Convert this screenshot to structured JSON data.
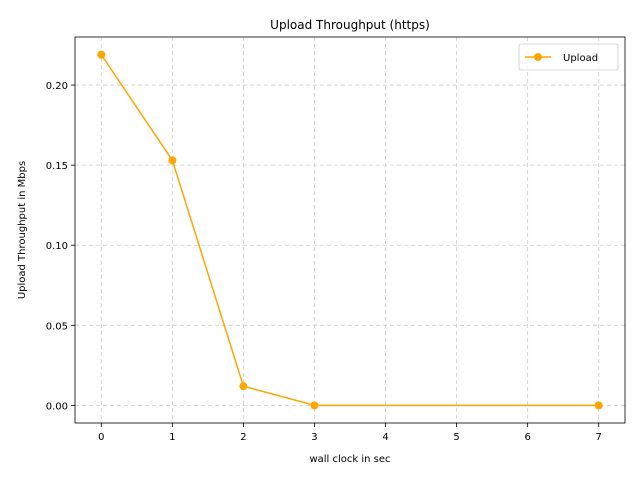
{
  "chart_data": {
    "type": "line",
    "title": "Upload Throughput (https)",
    "xlabel": "wall clock in sec",
    "ylabel": "Upload Throughput in Mbps",
    "x": [
      0,
      1,
      2,
      3,
      7
    ],
    "series": [
      {
        "name": "Upload",
        "color": "#ffa500",
        "marker": "circle",
        "values": [
          0.219,
          0.153,
          0.012,
          0.0,
          0.0
        ]
      }
    ],
    "xticks": [
      0,
      1,
      2,
      3,
      4,
      5,
      6,
      7
    ],
    "xtick_labels": [
      "0",
      "1",
      "2",
      "3",
      "4",
      "5",
      "6",
      "7"
    ],
    "yticks": [
      0.0,
      0.05,
      0.1,
      0.15,
      0.2
    ],
    "ytick_labels": [
      "0.00",
      "0.05",
      "0.10",
      "0.15",
      "0.20"
    ],
    "xlim": [
      -0.37,
      7.37
    ],
    "ylim": [
      -0.011,
      0.23
    ],
    "grid": true,
    "grid_style": "dashed",
    "legend_position": "top-right"
  }
}
